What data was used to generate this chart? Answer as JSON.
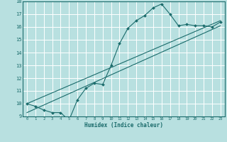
{
  "xlabel": "Humidex (Indice chaleur)",
  "bg_color": "#b8e0e0",
  "grid_color": "#ffffff",
  "line_color": "#1a6b6b",
  "xlim": [
    -0.5,
    23.5
  ],
  "ylim": [
    9,
    18
  ],
  "xticks": [
    0,
    1,
    2,
    3,
    4,
    5,
    6,
    7,
    8,
    9,
    10,
    11,
    12,
    13,
    14,
    15,
    16,
    17,
    18,
    19,
    20,
    21,
    22,
    23
  ],
  "yticks": [
    9,
    10,
    11,
    12,
    13,
    14,
    15,
    16,
    17,
    18
  ],
  "line1_x": [
    0,
    1,
    2,
    3,
    4,
    5,
    6,
    7,
    8,
    9,
    10,
    11,
    12,
    13,
    14,
    15,
    16,
    17,
    18,
    19,
    20,
    21,
    22,
    23
  ],
  "line1_y": [
    10.0,
    9.8,
    9.5,
    9.3,
    9.3,
    8.7,
    10.3,
    11.2,
    11.6,
    11.5,
    13.0,
    14.7,
    15.9,
    16.5,
    16.9,
    17.5,
    17.8,
    17.0,
    16.1,
    16.2,
    16.1,
    16.1,
    16.0,
    16.4
  ],
  "line2_x": [
    0,
    23
  ],
  "line2_y": [
    10.0,
    16.5
  ],
  "line3_x": [
    0,
    23
  ],
  "line3_y": [
    9.3,
    16.1
  ]
}
